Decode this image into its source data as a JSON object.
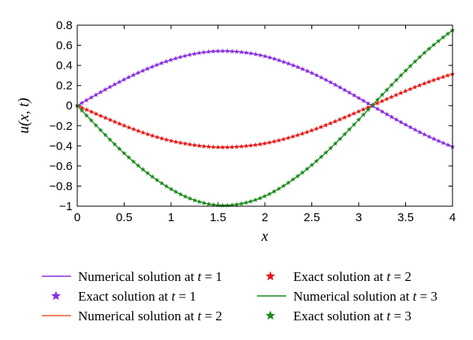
{
  "chart_data": {
    "type": "line",
    "title": "",
    "xlabel": "x",
    "ylabel": "u(x, t)",
    "xlim": [
      0,
      4
    ],
    "ylim": [
      -1,
      0.8
    ],
    "xticks": [
      0,
      0.5,
      1,
      1.5,
      2,
      2.5,
      3,
      3.5,
      4
    ],
    "xtick_labels": [
      "0",
      "0.5",
      "1",
      "1.5",
      "2",
      "2.5",
      "3",
      "3.5",
      "4"
    ],
    "yticks": [
      -1,
      -0.8,
      -0.6,
      -0.4,
      -0.2,
      0,
      0.2,
      0.4,
      0.6,
      0.8
    ],
    "ytick_labels": [
      "−1",
      "−0.8",
      "−0.6",
      "−0.4",
      "−0.2",
      "0",
      "0.2",
      "0.4",
      "0.6",
      "0.8"
    ],
    "grid": false,
    "legend_position": "below",
    "x": [
      0,
      0.25,
      0.5,
      0.75,
      1,
      1.25,
      1.5,
      1.75,
      2,
      2.25,
      2.5,
      2.75,
      3,
      3.25,
      3.5,
      3.75,
      4
    ],
    "series": [
      {
        "name": "Numerical solution at t = 1",
        "legend": {
          "prefix": "Numerical solution at ",
          "var": "t",
          "suffix": " = 1"
        },
        "kind": "line",
        "color": "#8a2be2",
        "values": [
          0,
          0.134,
          0.259,
          0.367,
          0.455,
          0.515,
          0.542,
          0.532,
          0.491,
          0.418,
          0.324,
          0.207,
          0.076,
          -0.059,
          -0.19,
          -0.309,
          -0.41
        ]
      },
      {
        "name": "Exact solution at t = 1",
        "legend": {
          "prefix": "Exact solution at ",
          "var": "t",
          "suffix": " = 1"
        },
        "kind": "markers",
        "color": "#8a2be2",
        "values": [
          0,
          0.134,
          0.259,
          0.367,
          0.455,
          0.515,
          0.542,
          0.532,
          0.491,
          0.418,
          0.324,
          0.207,
          0.076,
          -0.059,
          -0.19,
          -0.309,
          -0.41
        ]
      },
      {
        "name": "Numerical solution at t = 2",
        "legend": {
          "prefix": "Numerical solution at ",
          "var": "t",
          "suffix": " = 2"
        },
        "kind": "line",
        "color": "#f05a28",
        "values": [
          0,
          -0.102,
          -0.199,
          -0.284,
          -0.35,
          -0.393,
          -0.414,
          -0.406,
          -0.376,
          -0.321,
          -0.247,
          -0.157,
          -0.058,
          0.045,
          0.145,
          0.237,
          0.315
        ]
      },
      {
        "name": "Exact solution at t = 2",
        "legend": {
          "prefix": "Exact solution at ",
          "var": "t",
          "suffix": " = 2"
        },
        "kind": "markers",
        "color": "#e8141c",
        "values": [
          0,
          -0.102,
          -0.199,
          -0.284,
          -0.35,
          -0.393,
          -0.414,
          -0.406,
          -0.376,
          -0.321,
          -0.247,
          -0.157,
          -0.058,
          0.045,
          0.145,
          0.237,
          0.315
        ]
      },
      {
        "name": "Numerical solution at t = 3",
        "legend": {
          "prefix": "Numerical solution at ",
          "var": "t",
          "suffix": " = 3"
        },
        "kind": "line",
        "color": "#1a8a1a",
        "values": [
          0,
          -0.245,
          -0.474,
          -0.672,
          -0.83,
          -0.941,
          -0.99,
          -0.975,
          -0.9,
          -0.767,
          -0.591,
          -0.378,
          -0.14,
          0.107,
          0.347,
          0.565,
          0.75
        ]
      },
      {
        "name": "Exact solution at t = 3",
        "legend": {
          "prefix": "Exact solution at ",
          "var": "t",
          "suffix": " = 3"
        },
        "kind": "markers",
        "color": "#1a8a1a",
        "values": [
          0,
          -0.245,
          -0.474,
          -0.672,
          -0.83,
          -0.941,
          -0.99,
          -0.975,
          -0.9,
          -0.767,
          -0.591,
          -0.378,
          -0.14,
          0.107,
          0.347,
          0.565,
          0.75
        ]
      }
    ]
  }
}
